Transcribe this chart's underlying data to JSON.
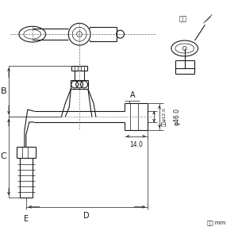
{
  "bg_color": "#ffffff",
  "lc": "#1a1a1a",
  "dc": "#1a1a1a",
  "tlw": 0.5,
  "mlw": 0.8,
  "label_kagi": "かぎ",
  "label_A": "A",
  "label_B": "B",
  "label_C": "C",
  "label_D": "D",
  "label_E": "E",
  "label_phi46": "φ46.0",
  "label_naikei": "内径φ12.0",
  "label_14": "14.0",
  "label_unit": "単位:mm",
  "figsize": [
    3.0,
    3.0
  ],
  "dpi": 100
}
